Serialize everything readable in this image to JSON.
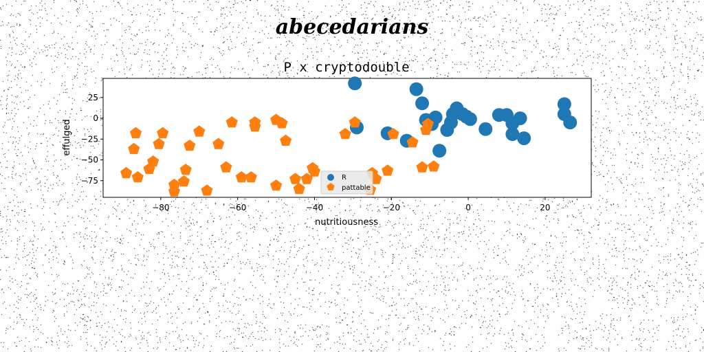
{
  "suptitle": "abecedarians",
  "chart_data": {
    "type": "scatter",
    "title": "P x cryptodouble",
    "xlabel": "nutritiousness",
    "ylabel": "effulged",
    "xlim": [
      -95,
      32
    ],
    "ylim": [
      -95,
      48
    ],
    "xticks": [
      -80,
      -60,
      -40,
      -20,
      0,
      20
    ],
    "yticks": [
      25,
      0,
      -25,
      -50,
      -75
    ],
    "grid": false,
    "legend_position": "lower center",
    "series": [
      {
        "name": "R",
        "color": "#1f77b4",
        "marker": "circle",
        "points": [
          [
            -29.5,
            42
          ],
          [
            -13.5,
            35
          ],
          [
            -12,
            18
          ],
          [
            -11,
            -2
          ],
          [
            -8.5,
            1
          ],
          [
            -9.5,
            -7
          ],
          [
            -29,
            -11
          ],
          [
            -21,
            -18
          ],
          [
            -16,
            -27
          ],
          [
            -7.5,
            -39
          ],
          [
            -5.5,
            -14
          ],
          [
            -4.5,
            -5
          ],
          [
            -4,
            5
          ],
          [
            -3,
            12
          ],
          [
            -1.5,
            5
          ],
          [
            -0.5,
            2
          ],
          [
            0.5,
            -1
          ],
          [
            4.5,
            -13
          ],
          [
            8,
            4
          ],
          [
            10,
            4
          ],
          [
            11.5,
            -6
          ],
          [
            11.5,
            -19
          ],
          [
            13.5,
            0
          ],
          [
            14.5,
            -24
          ],
          [
            25,
            17
          ],
          [
            25,
            5
          ],
          [
            26.5,
            -5
          ]
        ]
      },
      {
        "name": "pattable",
        "color": "#ff7f0e",
        "marker": "pentagon",
        "points": [
          [
            -89,
            -66
          ],
          [
            -87,
            -37
          ],
          [
            -86.5,
            -18
          ],
          [
            -86,
            -71
          ],
          [
            -83,
            -61
          ],
          [
            -82,
            -52
          ],
          [
            -80.5,
            -31
          ],
          [
            -79.5,
            -18
          ],
          [
            -76.5,
            -80
          ],
          [
            -76.5,
            -88
          ],
          [
            -74,
            -76
          ],
          [
            -73.5,
            -62
          ],
          [
            -72.5,
            -33
          ],
          [
            -70,
            -16
          ],
          [
            -68,
            -87
          ],
          [
            -65,
            -31
          ],
          [
            -63,
            -59
          ],
          [
            -61.5,
            -5
          ],
          [
            -59,
            -71
          ],
          [
            -56.5,
            -71
          ],
          [
            -55.5,
            -5
          ],
          [
            -55.5,
            -10
          ],
          [
            -50,
            -2
          ],
          [
            -50,
            -81
          ],
          [
            -48.5,
            -6
          ],
          [
            -47.5,
            -27
          ],
          [
            -45,
            -73
          ],
          [
            -44,
            -85
          ],
          [
            -42,
            -73
          ],
          [
            -40.5,
            -60
          ],
          [
            -40,
            -64
          ],
          [
            -32,
            -19
          ],
          [
            -29.5,
            -5
          ],
          [
            -25.5,
            -86
          ],
          [
            -25,
            -66
          ],
          [
            -24,
            -73
          ],
          [
            -21,
            -63
          ],
          [
            -19.5,
            -19
          ],
          [
            -14.5,
            -29
          ],
          [
            -12,
            -59
          ],
          [
            -10.5,
            -7
          ],
          [
            -11,
            -14
          ],
          [
            -9,
            -58
          ]
        ]
      }
    ]
  }
}
